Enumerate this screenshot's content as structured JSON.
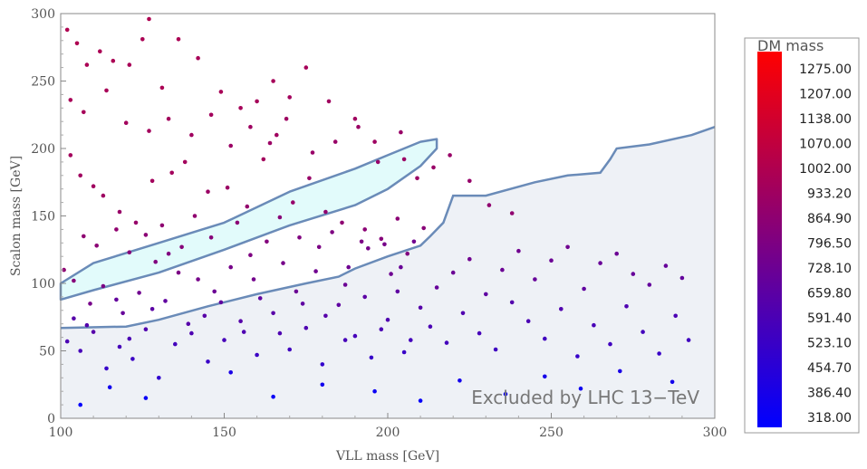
{
  "chart_data": {
    "type": "scatter",
    "xlabel": "VLL mass [GeV]",
    "ylabel": "Scalon mass [GeV]",
    "xlim": [
      100,
      300
    ],
    "ylim": [
      0,
      300
    ],
    "x_ticks": [
      "100",
      "150",
      "200",
      "250",
      "300"
    ],
    "y_ticks": [
      "0",
      "50",
      "100",
      "150",
      "200",
      "250",
      "300"
    ],
    "annotation": "Excluded by LHC 13−TeV",
    "colorbar": {
      "title": "DM mass",
      "labels": [
        "1275.00",
        "1207.00",
        "1138.00",
        "1070.00",
        "1002.00",
        "933.20",
        "864.90",
        "796.50",
        "728.10",
        "659.80",
        "591.40",
        "523.10",
        "454.70",
        "386.40",
        "318.00"
      ],
      "min": 318.0,
      "max": 1275.0,
      "colors": [
        "#0000ff",
        "#ff0000"
      ]
    },
    "excluded_region_boundary": [
      [
        100,
        67
      ],
      [
        120,
        68
      ],
      [
        130,
        73
      ],
      [
        145,
        83
      ],
      [
        160,
        92
      ],
      [
        175,
        100
      ],
      [
        185,
        105
      ],
      [
        190,
        111
      ],
      [
        200,
        120
      ],
      [
        210,
        128
      ],
      [
        213,
        135
      ],
      [
        217,
        145
      ],
      [
        220,
        165
      ],
      [
        230,
        165
      ],
      [
        245,
        175
      ],
      [
        255,
        180
      ],
      [
        265,
        182
      ],
      [
        268,
        192
      ],
      [
        270,
        200
      ],
      [
        280,
        203
      ],
      [
        293,
        210
      ],
      [
        300,
        216
      ]
    ],
    "allowed_band": {
      "upper": [
        [
          100,
          100
        ],
        [
          110,
          115
        ],
        [
          130,
          130
        ],
        [
          150,
          145
        ],
        [
          170,
          168
        ],
        [
          190,
          185
        ],
        [
          200,
          195
        ],
        [
          210,
          205
        ],
        [
          215,
          207
        ]
      ],
      "lower": [
        [
          100,
          88
        ],
        [
          110,
          95
        ],
        [
          130,
          108
        ],
        [
          150,
          125
        ],
        [
          170,
          143
        ],
        [
          190,
          158
        ],
        [
          200,
          170
        ],
        [
          210,
          187
        ],
        [
          215,
          200
        ]
      ]
    },
    "series": [
      {
        "points": [
          [
            102,
            288,
            975
          ],
          [
            105,
            278,
            970
          ],
          [
            108,
            262,
            960
          ],
          [
            112,
            272,
            960
          ],
          [
            116,
            265,
            960
          ],
          [
            121,
            262,
            950
          ],
          [
            125,
            281,
            960
          ],
          [
            127,
            296,
            970
          ],
          [
            131,
            245,
            960
          ],
          [
            136,
            281,
            960
          ],
          [
            142,
            267,
            950
          ],
          [
            149,
            242,
            950
          ],
          [
            155,
            230,
            940
          ],
          [
            160,
            235,
            940
          ],
          [
            165,
            250,
            940
          ],
          [
            170,
            238,
            930
          ],
          [
            175,
            260,
            940
          ],
          [
            182,
            235,
            920
          ],
          [
            190,
            222,
            920
          ],
          [
            196,
            205,
            910
          ],
          [
            205,
            192,
            900
          ],
          [
            209,
            178,
            900
          ],
          [
            214,
            186,
            890
          ],
          [
            219,
            195,
            890
          ],
          [
            225,
            176,
            880
          ],
          [
            231,
            158,
            860
          ],
          [
            238,
            152,
            860
          ],
          [
            103,
            195,
            930
          ],
          [
            106,
            180,
            920
          ],
          [
            110,
            172,
            920
          ],
          [
            113,
            165,
            910
          ],
          [
            118,
            153,
            890
          ],
          [
            123,
            145,
            880
          ],
          [
            128,
            176,
            930
          ],
          [
            134,
            182,
            930
          ],
          [
            138,
            190,
            930
          ],
          [
            145,
            168,
            900
          ],
          [
            151,
            171,
            900
          ],
          [
            157,
            157,
            870
          ],
          [
            162,
            192,
            930
          ],
          [
            166,
            210,
            920
          ],
          [
            171,
            160,
            880
          ],
          [
            176,
            178,
            890
          ],
          [
            181,
            153,
            860
          ],
          [
            186,
            145,
            850
          ],
          [
            193,
            140,
            840
          ],
          [
            198,
            133,
            820
          ],
          [
            203,
            148,
            840
          ],
          [
            206,
            122,
            800
          ],
          [
            211,
            141,
            830
          ],
          [
            101,
            110,
            850
          ],
          [
            104,
            102,
            820
          ],
          [
            109,
            85,
            760
          ],
          [
            113,
            98,
            780
          ],
          [
            119,
            78,
            700
          ],
          [
            124,
            93,
            740
          ],
          [
            129,
            116,
            800
          ],
          [
            133,
            122,
            800
          ],
          [
            137,
            127,
            820
          ],
          [
            142,
            103,
            760
          ],
          [
            147,
            94,
            720
          ],
          [
            152,
            112,
            760
          ],
          [
            158,
            121,
            790
          ],
          [
            163,
            131,
            810
          ],
          [
            168,
            115,
            760
          ],
          [
            173,
            134,
            800
          ],
          [
            178,
            109,
            740
          ],
          [
            183,
            138,
            790
          ],
          [
            188,
            112,
            730
          ],
          [
            194,
            126,
            760
          ],
          [
            199,
            129,
            760
          ],
          [
            204,
            112,
            710
          ],
          [
            208,
            131,
            740
          ],
          [
            102,
            57,
            600
          ],
          [
            106,
            50,
            580
          ],
          [
            110,
            64,
            640
          ],
          [
            114,
            37,
            520
          ],
          [
            118,
            53,
            580
          ],
          [
            122,
            44,
            540
          ],
          [
            126,
            66,
            620
          ],
          [
            130,
            30,
            500
          ],
          [
            135,
            55,
            570
          ],
          [
            140,
            63,
            610
          ],
          [
            145,
            42,
            530
          ],
          [
            150,
            58,
            580
          ],
          [
            155,
            72,
            640
          ],
          [
            160,
            47,
            540
          ],
          [
            165,
            78,
            650
          ],
          [
            170,
            51,
            560
          ],
          [
            175,
            67,
            610
          ],
          [
            180,
            40,
            510
          ],
          [
            185,
            84,
            670
          ],
          [
            190,
            61,
            580
          ],
          [
            195,
            45,
            520
          ],
          [
            200,
            73,
            620
          ],
          [
            205,
            49,
            530
          ],
          [
            210,
            82,
            640
          ],
          [
            215,
            97,
            700
          ],
          [
            220,
            108,
            720
          ],
          [
            225,
            118,
            740
          ],
          [
            230,
            92,
            670
          ],
          [
            235,
            110,
            720
          ],
          [
            240,
            124,
            740
          ],
          [
            245,
            103,
            700
          ],
          [
            250,
            117,
            720
          ],
          [
            255,
            127,
            740
          ],
          [
            260,
            96,
            680
          ],
          [
            265,
            115,
            710
          ],
          [
            270,
            122,
            720
          ],
          [
            275,
            107,
            700
          ],
          [
            280,
            99,
            690
          ],
          [
            285,
            113,
            700
          ],
          [
            290,
            104,
            690
          ],
          [
            213,
            68,
            600
          ],
          [
            218,
            56,
            570
          ],
          [
            223,
            78,
            620
          ],
          [
            228,
            63,
            580
          ],
          [
            233,
            51,
            550
          ],
          [
            238,
            86,
            630
          ],
          [
            243,
            72,
            600
          ],
          [
            248,
            59,
            560
          ],
          [
            253,
            81,
            620
          ],
          [
            258,
            46,
            520
          ],
          [
            263,
            69,
            590
          ],
          [
            268,
            55,
            560
          ],
          [
            273,
            83,
            610
          ],
          [
            278,
            64,
            570
          ],
          [
            283,
            48,
            530
          ],
          [
            288,
            76,
            600
          ],
          [
            292,
            58,
            560
          ],
          [
            106,
            10,
            330
          ],
          [
            115,
            23,
            380
          ],
          [
            126,
            15,
            350
          ],
          [
            152,
            34,
            410
          ],
          [
            165,
            16,
            350
          ],
          [
            180,
            25,
            380
          ],
          [
            196,
            20,
            360
          ],
          [
            210,
            13,
            340
          ],
          [
            222,
            28,
            390
          ],
          [
            236,
            18,
            350
          ],
          [
            248,
            31,
            400
          ],
          [
            259,
            22,
            370
          ],
          [
            271,
            35,
            410
          ],
          [
            287,
            27,
            390
          ],
          [
            103,
            236,
            950
          ],
          [
            107,
            227,
            940
          ],
          [
            114,
            243,
            950
          ],
          [
            120,
            219,
            930
          ],
          [
            127,
            213,
            930
          ],
          [
            133,
            222,
            930
          ],
          [
            140,
            210,
            920
          ],
          [
            146,
            225,
            930
          ],
          [
            152,
            202,
            900
          ],
          [
            158,
            216,
            910
          ],
          [
            164,
            204,
            900
          ],
          [
            169,
            222,
            910
          ],
          [
            177,
            197,
            890
          ],
          [
            184,
            205,
            890
          ],
          [
            191,
            216,
            900
          ],
          [
            197,
            190,
            880
          ],
          [
            204,
            212,
            890
          ],
          [
            107,
            135,
            850
          ],
          [
            111,
            128,
            840
          ],
          [
            117,
            140,
            860
          ],
          [
            121,
            123,
            820
          ],
          [
            126,
            136,
            840
          ],
          [
            131,
            143,
            850
          ],
          [
            136,
            108,
            780
          ],
          [
            141,
            150,
            860
          ],
          [
            146,
            134,
            820
          ],
          [
            154,
            145,
            840
          ],
          [
            159,
            103,
            750
          ],
          [
            167,
            149,
            830
          ],
          [
            172,
            94,
            720
          ],
          [
            179,
            127,
            780
          ],
          [
            187,
            99,
            720
          ],
          [
            192,
            131,
            780
          ],
          [
            201,
            107,
            730
          ],
          [
            104,
            74,
            640
          ],
          [
            108,
            69,
            630
          ],
          [
            117,
            88,
            690
          ],
          [
            121,
            59,
            600
          ],
          [
            128,
            81,
            660
          ],
          [
            132,
            87,
            680
          ],
          [
            139,
            70,
            640
          ],
          [
            144,
            76,
            650
          ],
          [
            149,
            86,
            680
          ],
          [
            156,
            64,
            610
          ],
          [
            161,
            89,
            680
          ],
          [
            167,
            63,
            610
          ],
          [
            174,
            85,
            670
          ],
          [
            181,
            76,
            640
          ],
          [
            187,
            58,
            580
          ],
          [
            193,
            90,
            660
          ],
          [
            198,
            66,
            600
          ],
          [
            203,
            94,
            670
          ],
          [
            207,
            58,
            570
          ]
        ]
      }
    ]
  }
}
